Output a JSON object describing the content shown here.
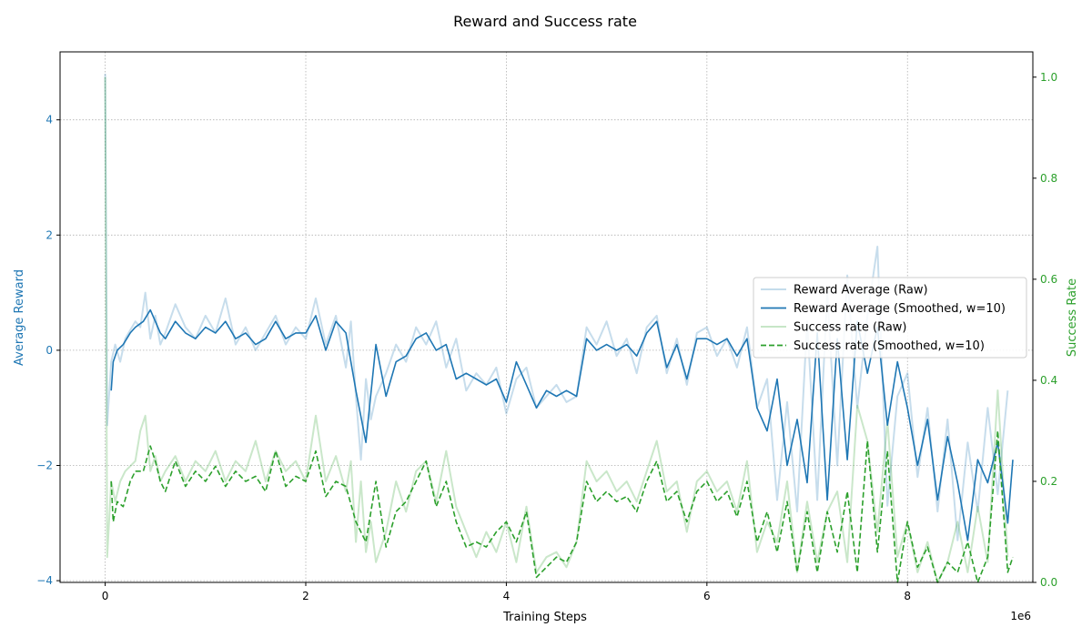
{
  "chart_data": {
    "type": "line",
    "title": "Reward and Success rate",
    "xlabel": "Training Steps",
    "x_offset_label": "1e6",
    "xlim": [
      -0.45,
      9.25
    ],
    "x_ticks": [
      0,
      2,
      4,
      6,
      8
    ],
    "y_left": {
      "label": "Average Reward",
      "lim": [
        -4.03,
        5.18
      ],
      "ticks": [
        -4,
        -2,
        0,
        2,
        4
      ],
      "color": "#1f77b4"
    },
    "y_right": {
      "label": "Success Rate",
      "lim": [
        0,
        1.05
      ],
      "ticks": [
        0.0,
        0.2,
        0.4,
        0.6,
        0.8,
        1.0
      ],
      "tick_labels": [
        "0.0",
        "0.2",
        "0.4",
        "0.6",
        "0.8",
        "1.0"
      ],
      "color": "#2ca02c"
    },
    "grid": true,
    "legend_placement": "center-right",
    "series": [
      {
        "name": "Reward Average (Raw)",
        "axis": "left",
        "color": "#1f77b4",
        "opacity": 0.25,
        "style": "solid",
        "x": [
          0.0,
          0.02,
          0.06,
          0.1,
          0.15,
          0.2,
          0.3,
          0.35,
          0.4,
          0.45,
          0.5,
          0.55,
          0.6,
          0.7,
          0.8,
          0.9,
          1.0,
          1.1,
          1.2,
          1.3,
          1.4,
          1.5,
          1.6,
          1.7,
          1.8,
          1.9,
          2.0,
          2.1,
          2.2,
          2.3,
          2.4,
          2.45,
          2.5,
          2.55,
          2.6,
          2.65,
          2.7,
          2.8,
          2.9,
          3.0,
          3.1,
          3.2,
          3.3,
          3.4,
          3.5,
          3.6,
          3.7,
          3.8,
          3.9,
          4.0,
          4.1,
          4.2,
          4.3,
          4.4,
          4.5,
          4.6,
          4.7,
          4.8,
          4.9,
          5.0,
          5.1,
          5.2,
          5.3,
          5.4,
          5.5,
          5.6,
          5.7,
          5.8,
          5.9,
          6.0,
          6.1,
          6.2,
          6.3,
          6.4,
          6.5,
          6.6,
          6.7,
          6.8,
          6.9,
          7.0,
          7.1,
          7.2,
          7.3,
          7.4,
          7.5,
          7.6,
          7.7,
          7.8,
          7.9,
          8.0,
          8.1,
          8.2,
          8.3,
          8.4,
          8.5,
          8.6,
          8.7,
          8.8,
          8.9,
          9.0
        ],
        "values": [
          4.8,
          -1.3,
          -0.2,
          0.1,
          -0.2,
          0.2,
          0.5,
          0.4,
          1.0,
          0.2,
          0.6,
          0.1,
          0.3,
          0.8,
          0.4,
          0.2,
          0.6,
          0.3,
          0.9,
          0.1,
          0.4,
          0.0,
          0.3,
          0.6,
          0.1,
          0.4,
          0.2,
          0.9,
          0.1,
          0.6,
          -0.3,
          0.5,
          -0.8,
          -1.9,
          -0.5,
          -1.2,
          -0.8,
          -0.4,
          0.1,
          -0.2,
          0.4,
          0.1,
          0.5,
          -0.3,
          0.2,
          -0.7,
          -0.4,
          -0.6,
          -0.3,
          -1.1,
          -0.5,
          -0.3,
          -1.0,
          -0.8,
          -0.6,
          -0.9,
          -0.8,
          0.4,
          0.1,
          0.5,
          -0.1,
          0.2,
          -0.4,
          0.4,
          0.6,
          -0.4,
          0.2,
          -0.6,
          0.3,
          0.4,
          -0.1,
          0.2,
          -0.3,
          0.4,
          -1.0,
          -0.5,
          -2.6,
          -0.9,
          -2.8,
          0.5,
          -2.6,
          1.0,
          -2.0,
          1.3,
          -1.0,
          0.6,
          1.8,
          -2.7,
          -0.8,
          -0.4,
          -2.2,
          -1.0,
          -2.8,
          -1.2,
          -3.3,
          -1.6,
          -2.8,
          -1.0,
          -2.5,
          -0.7
        ]
      },
      {
        "name": "Reward Average (Smoothed, w=10)",
        "axis": "left",
        "color": "#1f77b4",
        "opacity": 1,
        "style": "solid",
        "x": [
          0.06,
          0.08,
          0.12,
          0.18,
          0.25,
          0.3,
          0.38,
          0.45,
          0.5,
          0.55,
          0.6,
          0.7,
          0.8,
          0.9,
          1.0,
          1.1,
          1.2,
          1.3,
          1.4,
          1.5,
          1.6,
          1.7,
          1.8,
          1.9,
          2.0,
          2.1,
          2.2,
          2.3,
          2.4,
          2.5,
          2.6,
          2.7,
          2.8,
          2.9,
          3.0,
          3.1,
          3.2,
          3.3,
          3.4,
          3.5,
          3.6,
          3.7,
          3.8,
          3.9,
          4.0,
          4.1,
          4.2,
          4.3,
          4.4,
          4.5,
          4.6,
          4.7,
          4.8,
          4.9,
          5.0,
          5.1,
          5.2,
          5.3,
          5.4,
          5.5,
          5.6,
          5.7,
          5.8,
          5.9,
          6.0,
          6.1,
          6.2,
          6.3,
          6.4,
          6.5,
          6.6,
          6.7,
          6.8,
          6.9,
          7.0,
          7.1,
          7.2,
          7.3,
          7.4,
          7.5,
          7.6,
          7.7,
          7.8,
          7.9,
          8.0,
          8.1,
          8.2,
          8.3,
          8.4,
          8.5,
          8.6,
          8.7,
          8.8,
          8.9,
          9.0,
          9.05
        ],
        "values": [
          -0.7,
          -0.2,
          0.0,
          0.1,
          0.3,
          0.4,
          0.5,
          0.7,
          0.5,
          0.3,
          0.2,
          0.5,
          0.3,
          0.2,
          0.4,
          0.3,
          0.5,
          0.2,
          0.3,
          0.1,
          0.2,
          0.5,
          0.2,
          0.3,
          0.3,
          0.6,
          0.0,
          0.5,
          0.3,
          -0.7,
          -1.6,
          0.1,
          -0.8,
          -0.2,
          -0.1,
          0.2,
          0.3,
          0.0,
          0.1,
          -0.5,
          -0.4,
          -0.5,
          -0.6,
          -0.5,
          -0.9,
          -0.2,
          -0.6,
          -1.0,
          -0.7,
          -0.8,
          -0.7,
          -0.8,
          0.2,
          0.0,
          0.1,
          0.0,
          0.1,
          -0.1,
          0.3,
          0.5,
          -0.3,
          0.1,
          -0.5,
          0.2,
          0.2,
          0.1,
          0.2,
          -0.1,
          0.2,
          -1.0,
          -1.4,
          -0.5,
          -2.0,
          -1.2,
          -2.3,
          0.3,
          -2.6,
          0.2,
          -1.9,
          0.5,
          -0.4,
          0.4,
          -1.3,
          -0.2,
          -1.0,
          -2.0,
          -1.2,
          -2.6,
          -1.5,
          -2.3,
          -3.3,
          -1.9,
          -2.3,
          -1.6,
          -3.0,
          -1.9
        ]
      },
      {
        "name": "Success rate (Raw)",
        "axis": "right",
        "color": "#2ca02c",
        "opacity": 0.25,
        "style": "solid",
        "x": [
          0.0,
          0.02,
          0.06,
          0.1,
          0.15,
          0.2,
          0.3,
          0.35,
          0.4,
          0.45,
          0.5,
          0.55,
          0.6,
          0.7,
          0.8,
          0.9,
          1.0,
          1.1,
          1.2,
          1.3,
          1.4,
          1.5,
          1.6,
          1.7,
          1.8,
          1.9,
          2.0,
          2.1,
          2.2,
          2.3,
          2.4,
          2.45,
          2.5,
          2.55,
          2.6,
          2.65,
          2.7,
          2.8,
          2.9,
          3.0,
          3.1,
          3.2,
          3.3,
          3.4,
          3.5,
          3.6,
          3.7,
          3.8,
          3.9,
          4.0,
          4.1,
          4.2,
          4.3,
          4.4,
          4.5,
          4.6,
          4.7,
          4.8,
          4.9,
          5.0,
          5.1,
          5.2,
          5.3,
          5.4,
          5.5,
          5.6,
          5.7,
          5.8,
          5.9,
          6.0,
          6.1,
          6.2,
          6.3,
          6.4,
          6.5,
          6.6,
          6.7,
          6.8,
          6.9,
          7.0,
          7.1,
          7.2,
          7.3,
          7.4,
          7.5,
          7.6,
          7.7,
          7.8,
          7.9,
          8.0,
          8.1,
          8.2,
          8.3,
          8.4,
          8.5,
          8.6,
          8.7,
          8.8,
          8.9,
          9.0
        ],
        "values": [
          1.0,
          0.05,
          0.2,
          0.16,
          0.2,
          0.22,
          0.24,
          0.3,
          0.33,
          0.22,
          0.25,
          0.2,
          0.22,
          0.25,
          0.2,
          0.24,
          0.22,
          0.26,
          0.2,
          0.24,
          0.22,
          0.28,
          0.2,
          0.26,
          0.22,
          0.24,
          0.2,
          0.33,
          0.2,
          0.25,
          0.18,
          0.24,
          0.08,
          0.2,
          0.06,
          0.12,
          0.04,
          0.1,
          0.2,
          0.14,
          0.22,
          0.24,
          0.16,
          0.26,
          0.15,
          0.1,
          0.05,
          0.1,
          0.06,
          0.12,
          0.04,
          0.15,
          0.02,
          0.05,
          0.06,
          0.03,
          0.08,
          0.24,
          0.2,
          0.22,
          0.18,
          0.2,
          0.16,
          0.22,
          0.28,
          0.18,
          0.2,
          0.1,
          0.2,
          0.22,
          0.18,
          0.2,
          0.14,
          0.24,
          0.06,
          0.12,
          0.08,
          0.2,
          0.02,
          0.16,
          0.04,
          0.14,
          0.18,
          0.04,
          0.35,
          0.28,
          0.1,
          0.32,
          0.05,
          0.12,
          0.02,
          0.08,
          0.0,
          0.04,
          0.12,
          0.02,
          0.15,
          0.04,
          0.38,
          0.05
        ]
      },
      {
        "name": "Success rate (Smoothed, w=10)",
        "axis": "right",
        "color": "#2ca02c",
        "opacity": 1,
        "style": "dashed",
        "x": [
          0.06,
          0.08,
          0.12,
          0.18,
          0.25,
          0.3,
          0.38,
          0.45,
          0.5,
          0.55,
          0.6,
          0.7,
          0.8,
          0.9,
          1.0,
          1.1,
          1.2,
          1.3,
          1.4,
          1.5,
          1.6,
          1.7,
          1.8,
          1.9,
          2.0,
          2.1,
          2.2,
          2.3,
          2.4,
          2.5,
          2.6,
          2.7,
          2.8,
          2.9,
          3.0,
          3.1,
          3.2,
          3.3,
          3.4,
          3.5,
          3.6,
          3.7,
          3.8,
          3.9,
          4.0,
          4.1,
          4.2,
          4.3,
          4.4,
          4.5,
          4.6,
          4.7,
          4.8,
          4.9,
          5.0,
          5.1,
          5.2,
          5.3,
          5.4,
          5.5,
          5.6,
          5.7,
          5.8,
          5.9,
          6.0,
          6.1,
          6.2,
          6.3,
          6.4,
          6.5,
          6.6,
          6.7,
          6.8,
          6.9,
          7.0,
          7.1,
          7.2,
          7.3,
          7.4,
          7.5,
          7.6,
          7.7,
          7.8,
          7.9,
          8.0,
          8.1,
          8.2,
          8.3,
          8.4,
          8.5,
          8.6,
          8.7,
          8.8,
          8.9,
          9.0,
          9.05
        ],
        "values": [
          0.2,
          0.12,
          0.16,
          0.15,
          0.2,
          0.22,
          0.22,
          0.27,
          0.24,
          0.2,
          0.18,
          0.24,
          0.19,
          0.22,
          0.2,
          0.23,
          0.19,
          0.22,
          0.2,
          0.21,
          0.18,
          0.26,
          0.19,
          0.21,
          0.2,
          0.26,
          0.17,
          0.2,
          0.19,
          0.12,
          0.08,
          0.2,
          0.07,
          0.14,
          0.16,
          0.2,
          0.24,
          0.15,
          0.2,
          0.12,
          0.07,
          0.08,
          0.07,
          0.1,
          0.12,
          0.08,
          0.14,
          0.01,
          0.03,
          0.05,
          0.04,
          0.08,
          0.2,
          0.16,
          0.18,
          0.16,
          0.17,
          0.14,
          0.2,
          0.24,
          0.16,
          0.18,
          0.12,
          0.18,
          0.2,
          0.16,
          0.18,
          0.13,
          0.2,
          0.08,
          0.14,
          0.06,
          0.16,
          0.02,
          0.14,
          0.02,
          0.14,
          0.06,
          0.18,
          0.02,
          0.28,
          0.06,
          0.26,
          0.0,
          0.12,
          0.03,
          0.07,
          0.0,
          0.04,
          0.02,
          0.08,
          0.0,
          0.05,
          0.3,
          0.02,
          0.05
        ]
      }
    ]
  }
}
